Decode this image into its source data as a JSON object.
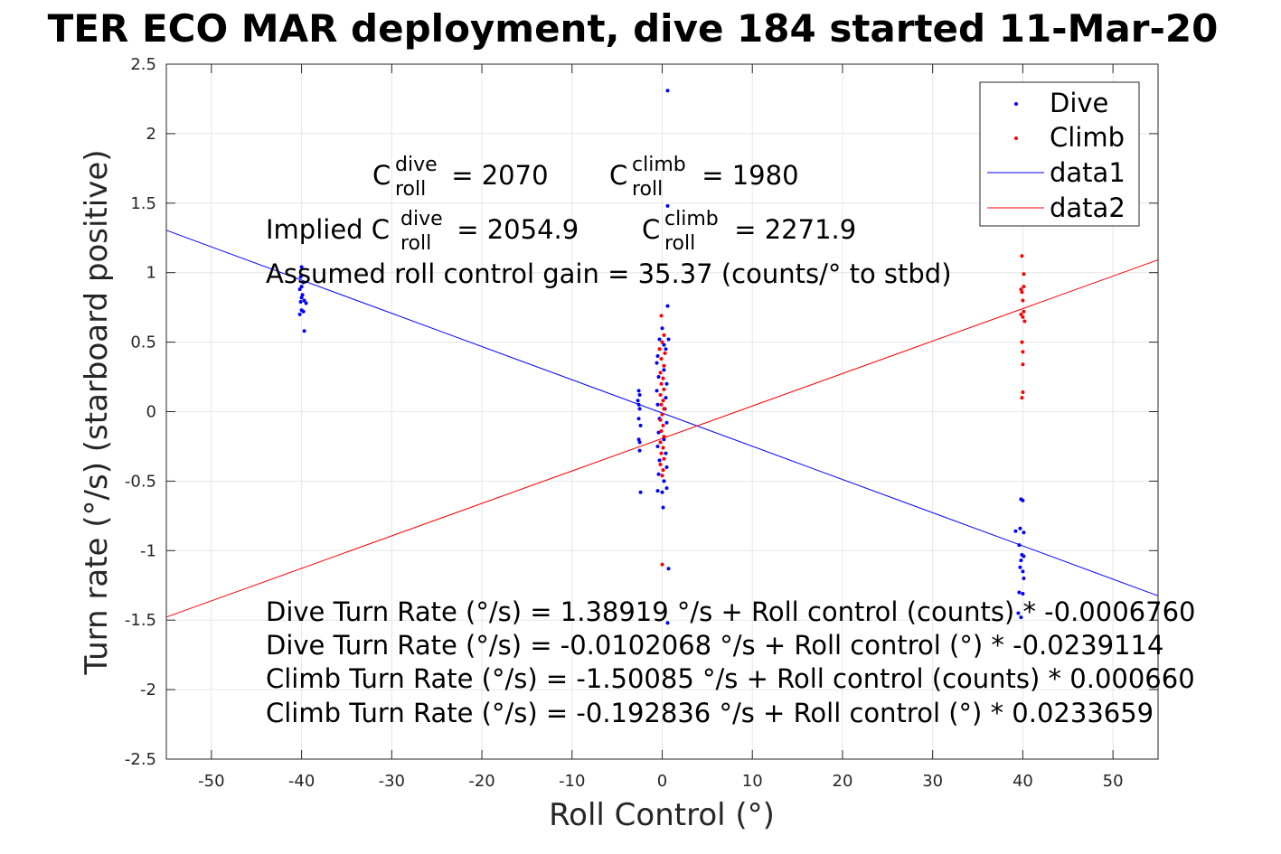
{
  "chart_data": {
    "type": "scatter",
    "title": "TER ECO MAR deployment, dive 184 started 11-Mar-20",
    "xlabel": "Roll Control (°)",
    "ylabel": "Turn rate (°/s) (starboard positive)",
    "xlim": [
      -55,
      55
    ],
    "ylim": [
      -2.5,
      2.5
    ],
    "xticks": [
      "-50",
      "-40",
      "-30",
      "-20",
      "-10",
      "0",
      "10",
      "20",
      "30",
      "40",
      "50"
    ],
    "yticks": [
      "2.5",
      "2",
      "1.5",
      "1",
      "0.5",
      "0",
      "-0.5",
      "-1",
      "-1.5",
      "-2",
      "-2.5"
    ],
    "grid": true,
    "legend_position": "top-right",
    "series": [
      {
        "name": "Dive",
        "kind": "points",
        "color": "#0000ff",
        "points": [
          [
            -40,
            1.04
          ],
          [
            -40.1,
            0.97
          ],
          [
            -39.8,
            0.93
          ],
          [
            -40,
            0.9
          ],
          [
            -40.2,
            0.88
          ],
          [
            -39.9,
            0.84
          ],
          [
            -40,
            0.82
          ],
          [
            -39.7,
            0.8
          ],
          [
            -40.1,
            0.79
          ],
          [
            -39.5,
            0.78
          ],
          [
            -40,
            0.73
          ],
          [
            -40.2,
            0.7
          ],
          [
            -39.8,
            0.72
          ],
          [
            -39.7,
            0.58
          ],
          [
            -2.6,
            0.15
          ],
          [
            -2.5,
            0.12
          ],
          [
            -2.7,
            0.08
          ],
          [
            -2.6,
            0.05
          ],
          [
            -2.5,
            0.02
          ],
          [
            -2.6,
            -0.05
          ],
          [
            -2.4,
            -0.1
          ],
          [
            -2.6,
            -0.2
          ],
          [
            -2.5,
            -0.22
          ],
          [
            -2.5,
            -0.28
          ],
          [
            -2.4,
            -0.58
          ],
          [
            0.6,
            2.31
          ],
          [
            0.6,
            1.48
          ],
          [
            0.6,
            0.76
          ],
          [
            0,
            0.6
          ],
          [
            -0.3,
            0.52
          ],
          [
            0.7,
            0.52
          ],
          [
            0.2,
            0.48
          ],
          [
            -0.5,
            0.4
          ],
          [
            0.4,
            0.45
          ],
          [
            -0.6,
            0.35
          ],
          [
            0.2,
            0.3
          ],
          [
            -0.4,
            0.25
          ],
          [
            0.5,
            0.2
          ],
          [
            -0.6,
            0.15
          ],
          [
            0.4,
            0.1
          ],
          [
            -0.5,
            0.05
          ],
          [
            0.3,
            0.02
          ],
          [
            -0.3,
            -0.05
          ],
          [
            0.5,
            -0.08
          ],
          [
            -0.4,
            -0.15
          ],
          [
            0.2,
            -0.2
          ],
          [
            -0.5,
            -0.25
          ],
          [
            0.4,
            -0.3
          ],
          [
            -0.3,
            -0.35
          ],
          [
            0.5,
            -0.4
          ],
          [
            -0.4,
            -0.45
          ],
          [
            0.2,
            -0.5
          ],
          [
            0.5,
            -0.55
          ],
          [
            -0.5,
            -0.57
          ],
          [
            0,
            -0.58
          ],
          [
            0.1,
            -0.69
          ],
          [
            0.7,
            -1.13
          ],
          [
            0.6,
            -1.52
          ],
          [
            39.8,
            -0.63
          ],
          [
            40,
            -0.64
          ],
          [
            39.7,
            -0.84
          ],
          [
            39.2,
            -0.86
          ],
          [
            40.1,
            -0.87
          ],
          [
            39.6,
            -0.96
          ],
          [
            39.9,
            -1.03
          ],
          [
            40.1,
            -1.04
          ],
          [
            39.8,
            -1.07
          ],
          [
            39.7,
            -1.12
          ],
          [
            40,
            -1.15
          ],
          [
            40.1,
            -1.2
          ],
          [
            39.6,
            -1.3
          ],
          [
            40,
            -1.31
          ],
          [
            39.5,
            -1.45
          ],
          [
            39.8,
            -1.48
          ]
        ]
      },
      {
        "name": "Climb",
        "kind": "points",
        "color": "#ff0000",
        "points": [
          [
            -0.1,
            0.69
          ],
          [
            0.2,
            0.55
          ],
          [
            0,
            0.5
          ],
          [
            -0.3,
            0.45
          ],
          [
            0.3,
            0.42
          ],
          [
            -0.1,
            0.38
          ],
          [
            0.2,
            0.33
          ],
          [
            -0.2,
            0.28
          ],
          [
            0.1,
            0.24
          ],
          [
            -0.1,
            0.2
          ],
          [
            0.2,
            0.16
          ],
          [
            -0.2,
            0.12
          ],
          [
            0.1,
            0.08
          ],
          [
            -0.1,
            0.05
          ],
          [
            0.2,
            0.02
          ],
          [
            0,
            -0.02
          ],
          [
            -0.2,
            -0.06
          ],
          [
            0.1,
            -0.1
          ],
          [
            -0.1,
            -0.14
          ],
          [
            0.2,
            -0.18
          ],
          [
            -0.2,
            -0.22
          ],
          [
            0.1,
            -0.26
          ],
          [
            -0.1,
            -0.3
          ],
          [
            0.2,
            -0.34
          ],
          [
            -0.2,
            -0.38
          ],
          [
            0.1,
            -0.42
          ],
          [
            0,
            -0.46
          ],
          [
            0,
            -1.1
          ],
          [
            39.9,
            1.12
          ],
          [
            40.1,
            0.99
          ],
          [
            40.1,
            0.9
          ],
          [
            39.8,
            0.88
          ],
          [
            39.9,
            0.86
          ],
          [
            40,
            0.8
          ],
          [
            40.1,
            0.72
          ],
          [
            39.8,
            0.7
          ],
          [
            40,
            0.68
          ],
          [
            40.2,
            0.65
          ],
          [
            39.9,
            0.5
          ],
          [
            40,
            0.43
          ],
          [
            40,
            0.34
          ],
          [
            40,
            0.14
          ],
          [
            39.9,
            0.1
          ]
        ]
      },
      {
        "name": "data1",
        "kind": "line",
        "color": "#0000ff",
        "points": [
          [
            -55,
            1.305
          ],
          [
            55,
            -1.325
          ]
        ]
      },
      {
        "name": "data2",
        "kind": "line",
        "color": "#ff0000",
        "points": [
          [
            -55,
            -1.478
          ],
          [
            55,
            1.092
          ]
        ]
      }
    ],
    "annotations": {
      "c_dive": {
        "base": "C",
        "sup": "dive",
        "sub": "roll",
        "rest": " = 2070"
      },
      "c_climb": {
        "base": "C",
        "sup": "climb",
        "sub": "roll",
        "rest": " = 1980"
      },
      "implied_dive": {
        "prefix": "Implied C",
        "sup": "dive",
        "sub": "roll",
        "rest": " = 2054.9"
      },
      "implied_climb": {
        "base": "C",
        "sup": "climb",
        "sub": "roll",
        "rest": " = 2271.9"
      },
      "gain": "Assumed roll control gain = 35.37 (counts/° to stbd)",
      "equations": [
        "Dive Turn Rate (°/s) = 1.38919 °/s + Roll control (counts) * -0.0006760",
        "Dive Turn Rate (°/s) = -0.0102068 °/s + Roll control (°) * -0.0239114",
        "Climb Turn Rate (°/s) = -1.50085 °/s + Roll control (counts) * 0.000660",
        "Climb Turn Rate (°/s) = -0.192836 °/s + Roll control (°) * 0.0233659"
      ]
    }
  }
}
